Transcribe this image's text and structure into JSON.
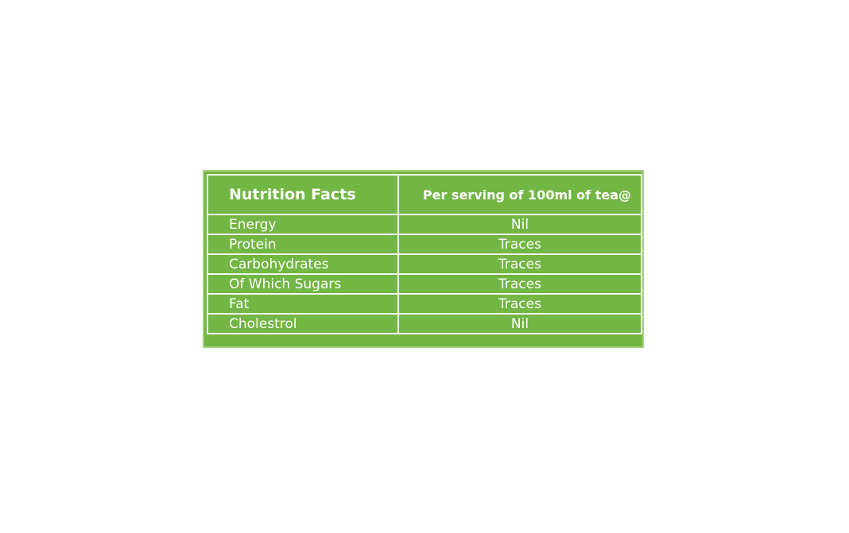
{
  "table": {
    "header": [
      "Nutrition Facts",
      "Per serving of 100ml of tea@"
    ],
    "rows": [
      [
        "Energy",
        "Nil"
      ],
      [
        "Protein",
        "Traces"
      ],
      [
        "Carbohydrates",
        "Traces"
      ],
      [
        "Of Which Sugars",
        "Traces"
      ],
      [
        "Fat",
        "Traces"
      ],
      [
        "Cholestrol",
        "Nil"
      ]
    ]
  }
}
